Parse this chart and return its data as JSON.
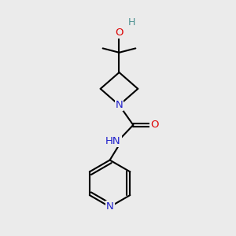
{
  "bg_color": "#ebebeb",
  "atom_colors": {
    "C": "#000000",
    "N": "#2020cc",
    "O": "#dd0000",
    "H": "#4a9090"
  },
  "bond_color": "#000000",
  "bond_width": 1.5,
  "font_size": 9.5
}
